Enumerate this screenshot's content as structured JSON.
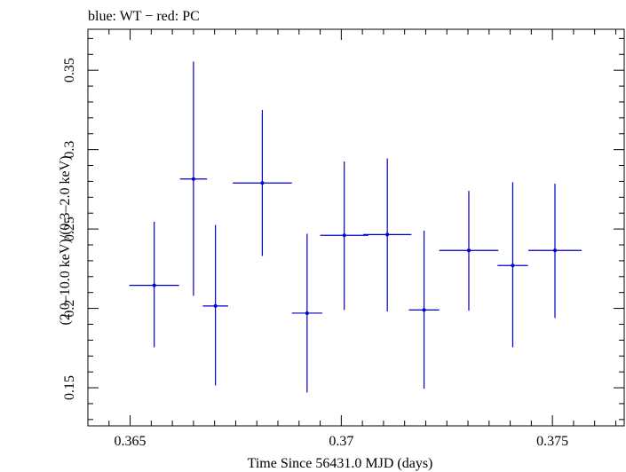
{
  "chart_data": {
    "type": "scatter",
    "title": "blue: WT − red: PC",
    "xlabel": "Time Since 56431.0 MJD (days)",
    "ylabel": "(2.0–10.0 keV)/(0.3–2.0 keV)",
    "xlim": [
      0.364,
      0.3767
    ],
    "ylim": [
      0.126,
      0.3758
    ],
    "x_ticks": [
      0.365,
      0.37,
      0.375
    ],
    "x_tick_labels": [
      "0.365",
      "0.37",
      "0.375"
    ],
    "y_ticks": [
      0.15,
      0.2,
      0.25,
      0.3,
      0.35
    ],
    "y_tick_labels": [
      "0.15",
      "0.2",
      "0.25",
      "0.3",
      "0.35"
    ],
    "grid": false,
    "series": [
      {
        "color": "#0000cc",
        "points": [
          {
            "x": 0.36557,
            "xerr": 0.00059,
            "y": 0.2145,
            "yerr_lo": 0.039,
            "yerr_hi": 0.04
          },
          {
            "x": 0.3665,
            "xerr": 0.00032,
            "y": 0.2815,
            "yerr_lo": 0.0735,
            "yerr_hi": 0.074
          },
          {
            "x": 0.36702,
            "xerr": 0.0003,
            "y": 0.2015,
            "yerr_lo": 0.05,
            "yerr_hi": 0.051
          },
          {
            "x": 0.36813,
            "xerr": 0.0007,
            "y": 0.279,
            "yerr_lo": 0.046,
            "yerr_hi": 0.046
          },
          {
            "x": 0.36919,
            "xerr": 0.00036,
            "y": 0.197,
            "yerr_lo": 0.05,
            "yerr_hi": 0.05
          },
          {
            "x": 0.37007,
            "xerr": 0.00057,
            "y": 0.246,
            "yerr_lo": 0.047,
            "yerr_hi": 0.0465
          },
          {
            "x": 0.37109,
            "xerr": 0.00057,
            "y": 0.2465,
            "yerr_lo": 0.0485,
            "yerr_hi": 0.048
          },
          {
            "x": 0.37196,
            "xerr": 0.00036,
            "y": 0.199,
            "yerr_lo": 0.0495,
            "yerr_hi": 0.05
          },
          {
            "x": 0.37302,
            "xerr": 0.0007,
            "y": 0.2365,
            "yerr_lo": 0.038,
            "yerr_hi": 0.0375
          },
          {
            "x": 0.37406,
            "xerr": 0.00036,
            "y": 0.227,
            "yerr_lo": 0.0515,
            "yerr_hi": 0.0525
          },
          {
            "x": 0.37506,
            "xerr": 0.00063,
            "y": 0.2365,
            "yerr_lo": 0.0425,
            "yerr_hi": 0.042
          }
        ]
      }
    ]
  }
}
